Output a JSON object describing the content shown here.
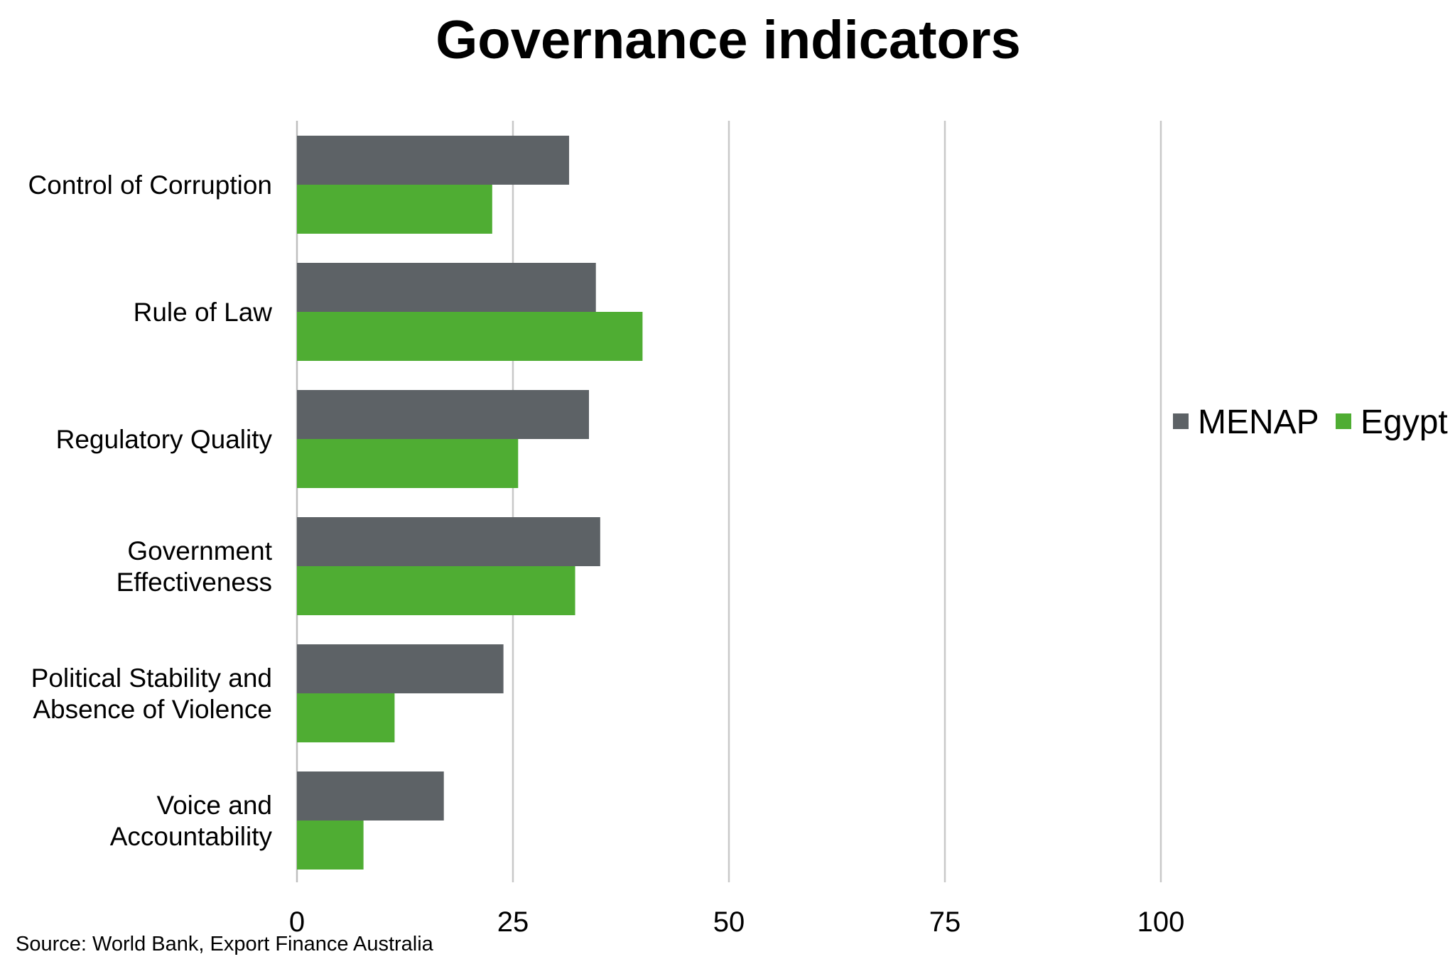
{
  "chart_data": {
    "type": "bar",
    "orientation": "horizontal",
    "title": "Governance indicators",
    "categories": [
      "Control of Corruption",
      "Rule of Law",
      "Regulatory Quality",
      "Government Effectiveness",
      "Political Stability and Absence of Violence",
      "Voice and Accountability"
    ],
    "category_lines": [
      [
        "Control of Corruption"
      ],
      [
        "Rule of Law"
      ],
      [
        "Regulatory Quality"
      ],
      [
        "Government",
        "Effectiveness"
      ],
      [
        "Political Stability and",
        "Absence of Violence"
      ],
      [
        "Voice and",
        "Accountability"
      ]
    ],
    "series": [
      {
        "name": "MENAP",
        "color": "#5d6266",
        "values": [
          31.5,
          34.6,
          33.8,
          35.1,
          23.9,
          17.0
        ]
      },
      {
        "name": "Egypt",
        "color": "#4fad33",
        "values": [
          22.6,
          40.0,
          25.6,
          32.2,
          11.3,
          7.7
        ]
      }
    ],
    "xlim": [
      0,
      100
    ],
    "xticks": [
      0,
      25,
      50,
      75,
      100
    ],
    "grid": true,
    "legend_position": "right",
    "xlabel": "",
    "ylabel": "",
    "source": "Source: World Bank, Export Finance Australia"
  },
  "colors": {
    "gridline": "#c8c8c8",
    "axis": "#bfbfbf"
  }
}
